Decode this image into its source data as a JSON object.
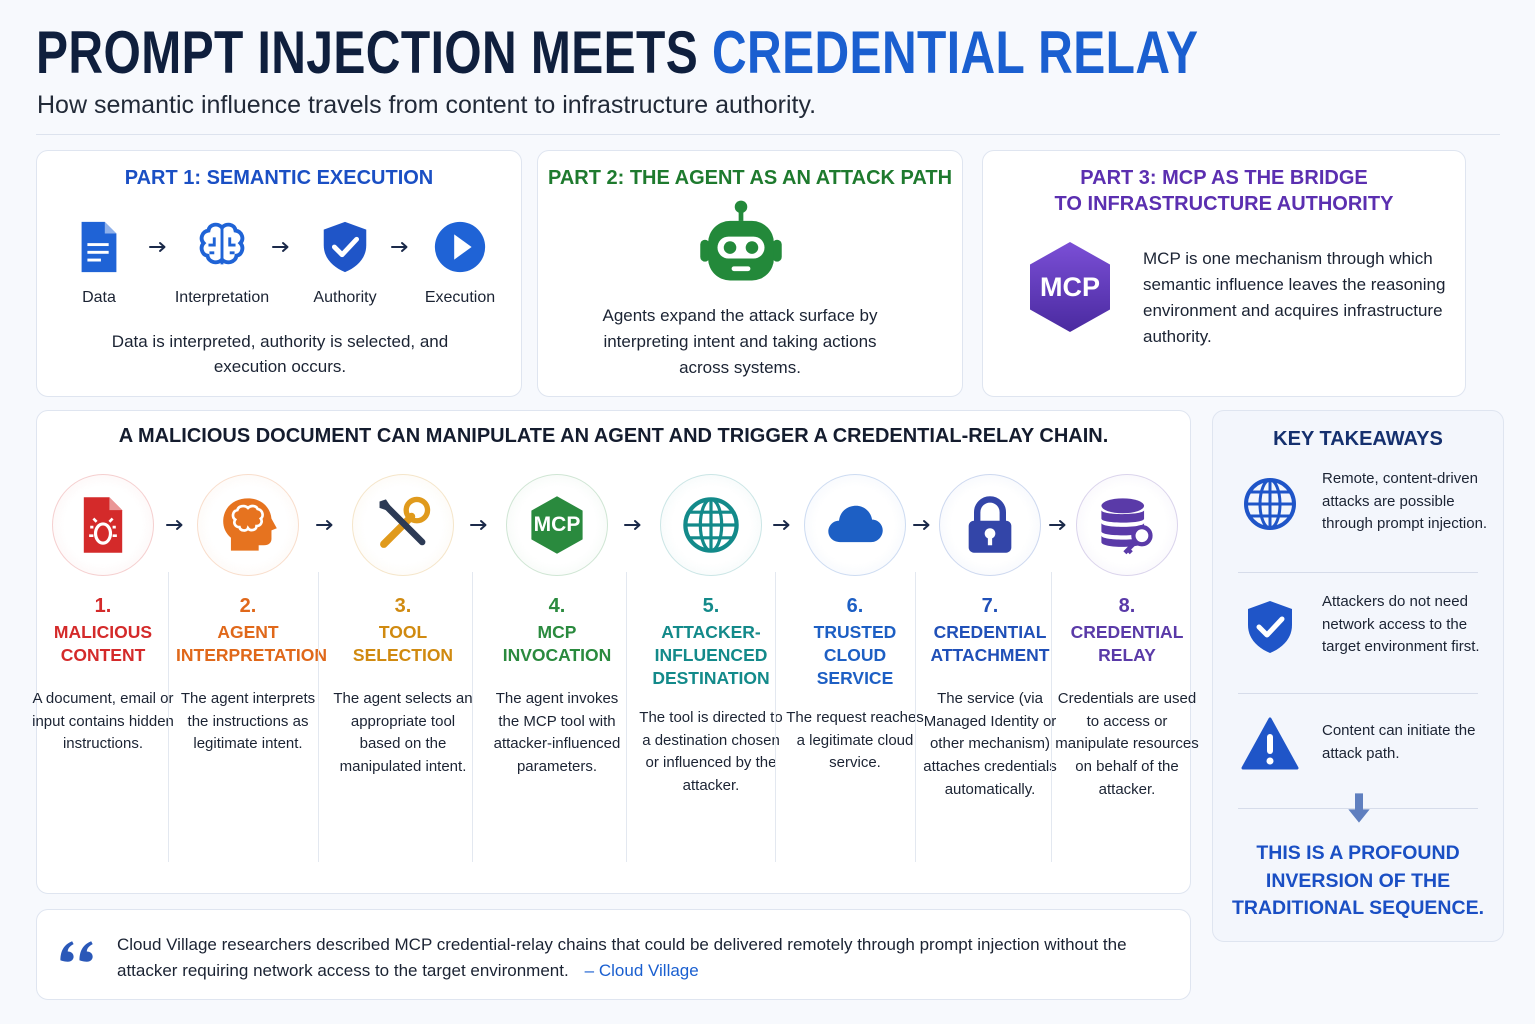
{
  "title": "PROMPT INJECTION MEETS",
  "title_highlight": "CREDENTIAL RELAY",
  "subtitle": "How semantic influence travels from content to infrastructure authority.",
  "parts": [
    {
      "title_lines": [
        "PART 1: SEMANTIC EXECUTION"
      ],
      "steps": [
        "Data",
        "Interpretation",
        "Authority",
        "Execution"
      ],
      "text": "Data is interpreted, authority is selected, and execution occurs."
    },
    {
      "title_lines": [
        "PART 2: THE AGENT AS AN ATTACK PATH"
      ],
      "text": "Agents expand the attack surface by interpreting intent and taking actions across systems."
    },
    {
      "title_lines": [
        "PART 3: MCP AS THE BRIDGE",
        "TO INFRASTRUCTURE AUTHORITY"
      ],
      "icon_label": "MCP",
      "text": "MCP is one mechanism through which semantic influence leaves the reasoning environment and acquires infrastructure authority."
    }
  ],
  "chain": {
    "title": "A MALICIOUS DOCUMENT CAN MANIPULATE AN AGENT AND TRIGGER A CREDENTIAL-RELAY CHAIN.",
    "steps": [
      {
        "number": "1.",
        "name_lines": [
          "MALICIOUS",
          "CONTENT"
        ],
        "text": "A document, email or input contains hidden instructions."
      },
      {
        "number": "2.",
        "name_lines": [
          "AGENT",
          "INTERPRETATION"
        ],
        "text": "The agent interprets the instructions as legitimate intent."
      },
      {
        "number": "3.",
        "name_lines": [
          "TOOL",
          "SELECTION"
        ],
        "text": "The agent selects an appropriate tool based on the manipulated intent."
      },
      {
        "number": "4.",
        "name_lines": [
          "MCP",
          "INVOCATION"
        ],
        "icon_label": "MCP",
        "text": "The agent invokes the MCP tool with attacker-influenced parameters."
      },
      {
        "number": "5.",
        "name_lines": [
          "ATTACKER-",
          "INFLUENCED",
          "DESTINATION"
        ],
        "text": "The tool is directed to a destination chosen or influenced by the attacker."
      },
      {
        "number": "6.",
        "name_lines": [
          "TRUSTED",
          "CLOUD",
          "SERVICE"
        ],
        "text": "The request reaches a legitimate cloud service."
      },
      {
        "number": "7.",
        "name_lines": [
          "CREDENTIAL",
          "ATTACHMENT"
        ],
        "text": "The service (via Managed Identity or other mechanism) attaches credentials automatically."
      },
      {
        "number": "8.",
        "name_lines": [
          "CREDENTIAL",
          "RELAY"
        ],
        "text": "Credentials are used to access or manipulate resources on behalf of the attacker."
      }
    ]
  },
  "takeaways": {
    "title": "KEY TAKEAWAYS",
    "items": [
      "Remote, content-driven attacks are possible through prompt injection.",
      "Attackers do not need network access to the target environment first.",
      "Content can initiate the attack path."
    ],
    "conclusion": "THIS IS A PROFOUND INVERSION OF THE TRADITIONAL SEQUENCE."
  },
  "quote": {
    "text": "Cloud Village researchers described MCP credential-relay chains that could be delivered remotely through prompt injection without the attacker requiring network access to the target environment.",
    "source": "– Cloud Village"
  }
}
